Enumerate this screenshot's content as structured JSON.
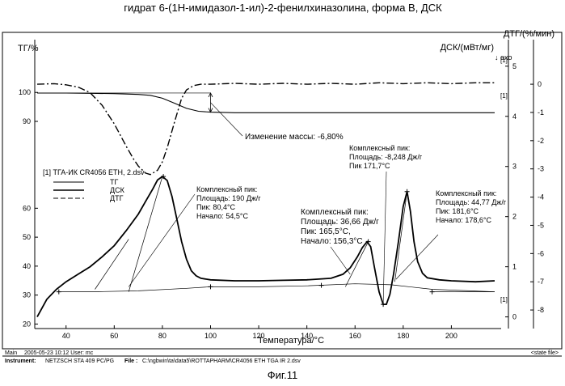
{
  "chart_data": {
    "type": "line",
    "title": "гидрат 6-(1Н-имидазол-1-ил)-2-фенилхиназолина, форма В, ДСК",
    "xlabel": "Температура/°C",
    "ylabel_left": "ТГ/%",
    "ylabel_right_dsc": "ДСК/(мВт/мг)",
    "ylabel_right_dtg": "ДТГ/(%/мин)",
    "exo_mark": "↓ exo",
    "xlim": [
      27,
      220
    ],
    "ylim_left": [
      19,
      116
    ],
    "ylim_dsc": [
      -0.2,
      5.4
    ],
    "ylim_dtg": [
      -8.6,
      1.35
    ],
    "x_ticks": [
      40,
      60,
      80,
      100,
      120,
      140,
      160,
      180,
      200
    ],
    "y_ticks_left": [
      20,
      30,
      40,
      50,
      60,
      90,
      100
    ],
    "y_ticks_dsc": [
      0,
      1,
      2,
      3,
      4,
      5
    ],
    "y_ticks_dtg": [
      0,
      -1,
      -2,
      -3,
      -4,
      -5,
      -6,
      -7,
      -8
    ],
    "series": [
      {
        "name": "ТГ",
        "axis": "left",
        "style": "solid",
        "x": [
          28,
          40,
          50,
          60,
          70,
          75,
          80,
          85,
          90,
          95,
          100,
          110,
          130,
          150,
          170,
          190,
          210,
          218
        ],
        "y": [
          99.8,
          99.8,
          99.7,
          99.6,
          99.3,
          99.0,
          98.0,
          96.3,
          94.5,
          93.5,
          93.2,
          93.0,
          93.0,
          93.0,
          93.0,
          93.0,
          93.0,
          93.0
        ]
      },
      {
        "name": "ДСК",
        "axis": "dsc",
        "style": "solid",
        "x": [
          28,
          32,
          36,
          40,
          45,
          50,
          55,
          60,
          65,
          70,
          73,
          76,
          78,
          80,
          82,
          84,
          86,
          88,
          90,
          92,
          94,
          96,
          100,
          110,
          120,
          130,
          140,
          150,
          155,
          158,
          161,
          163,
          165,
          166.5,
          168,
          170,
          171.7,
          173,
          174.5,
          176,
          178,
          180,
          181.6,
          183,
          184.5,
          186,
          188,
          190,
          195,
          200,
          210,
          218
        ],
        "y": [
          0.0,
          0.35,
          0.55,
          0.7,
          0.85,
          1.0,
          1.2,
          1.42,
          1.72,
          2.05,
          2.3,
          2.55,
          2.73,
          2.8,
          2.72,
          2.4,
          1.95,
          1.5,
          1.15,
          0.92,
          0.82,
          0.77,
          0.74,
          0.72,
          0.72,
          0.73,
          0.74,
          0.77,
          0.85,
          0.98,
          1.2,
          1.38,
          1.5,
          1.4,
          1.0,
          0.5,
          0.25,
          0.25,
          0.45,
          0.85,
          1.5,
          2.2,
          2.5,
          2.1,
          1.5,
          1.1,
          0.87,
          0.78,
          0.74,
          0.72,
          0.7,
          0.72
        ]
      },
      {
        "name": "ДТГ",
        "axis": "dtg",
        "style": "dashdot",
        "x": [
          28,
          35,
          40,
          45,
          50,
          55,
          60,
          65,
          68,
          70,
          73,
          75,
          78,
          80,
          82,
          85,
          88,
          90,
          93,
          96,
          100,
          110,
          120,
          130,
          140,
          150,
          160,
          170,
          180,
          190,
          200,
          210,
          218
        ],
        "y": [
          0.0,
          0.02,
          -0.02,
          -0.1,
          -0.3,
          -0.75,
          -1.4,
          -2.2,
          -2.65,
          -2.9,
          -3.15,
          -3.2,
          -3.05,
          -2.75,
          -2.25,
          -1.35,
          -0.5,
          -0.2,
          -0.05,
          0.0,
          0.0,
          0.03,
          0.0,
          0.03,
          0.0,
          0.03,
          0.0,
          0.05,
          0.02,
          0.05,
          0.02,
          0.05,
          0.05
        ]
      }
    ],
    "baselines": [
      {
        "x": [
          37,
          50,
          70,
          90,
          100,
          120,
          140,
          160,
          175,
          192,
          218
        ],
        "y": [
          0.5,
          0.5,
          0.52,
          0.57,
          0.6,
          0.6,
          0.62,
          0.66,
          0.64,
          0.55,
          0.5
        ]
      },
      {
        "x": [
          192,
          218
        ],
        "y": [
          0.5,
          0.5
        ]
      }
    ],
    "tangents": [
      {
        "x": [
          52,
          66
        ],
        "y": [
          0.55,
          1.55
        ]
      },
      {
        "x": [
          66,
          80
        ],
        "y": [
          0.5,
          2.8
        ]
      },
      {
        "x": [
          156,
          165.5
        ],
        "y": [
          0.6,
          1.5
        ]
      },
      {
        "x": [
          176.5,
          181.6
        ],
        "y": [
          0.7,
          2.5
        ]
      }
    ],
    "markers_dsc": [
      {
        "x": 37,
        "y": 0.5
      },
      {
        "x": 80.4,
        "y": 2.8
      },
      {
        "x": 100,
        "y": 0.6
      },
      {
        "x": 146,
        "y": 0.63
      },
      {
        "x": 165.5,
        "y": 1.5
      },
      {
        "x": 171.7,
        "y": 0.25
      },
      {
        "x": 181.6,
        "y": 2.5
      },
      {
        "x": 192,
        "y": 0.5
      }
    ],
    "mass_change": {
      "x": 100,
      "y_from": 99.8,
      "y_to": 93.2,
      "text": "Изменение массы: -6,80%"
    },
    "legend": {
      "title": "[1] ТГА-ИК CR4056 ETH, 2.dsv",
      "placement": "left",
      "entries": [
        {
          "label": "ТГ",
          "style": "solid"
        },
        {
          "label": "ДСК",
          "style": "solid"
        },
        {
          "label": "ДТГ",
          "style": "dashed"
        }
      ]
    },
    "annotations": [
      {
        "lines": [
          "Комплексный пик:",
          "Площадь: 190 Дж/г",
          "Пик: 80,4°C",
          "Начало: 54,5°C"
        ],
        "target_x": 66,
        "target_y": 0.6
      },
      {
        "lines": [
          "Комплексный пик:",
          "Площадь: 36,66 Дж/г",
          "Пик: 165,5°C,",
          "Начало: 156,3°C"
        ],
        "target_x": 158,
        "target_y": 0.85
      },
      {
        "lines": [
          "Комплексный пик:",
          "Площадь: -8,248 Дж/г",
          "Пик 171,7°C"
        ],
        "target_x": 171.7,
        "target_y": 0.25
      },
      {
        "lines": [
          "Комплексный пик:",
          "Площадь: 44,77 Дж/г",
          "Пик: 181,6°C",
          "Начало: 178,6°C"
        ],
        "target_x": 177,
        "target_y": 0.75
      }
    ],
    "curve_tags": [
      "[1]",
      "[1]",
      "[1]"
    ],
    "grid": false
  },
  "footer": {
    "main_label": "Main",
    "main_info": "2005-05-23 10:12   User: mc",
    "state_file": "<state file>",
    "instrument_label": "Instrument:",
    "instrument_value": "NETZSCH STA 409 PC/PG",
    "file_label": "File :",
    "file_value": "C:\\ngbwin\\ta\\data5\\ROTTAPHARM\\CR4056 ETH TGA IR 2.dsv"
  },
  "figure_caption": "Фиг.11"
}
